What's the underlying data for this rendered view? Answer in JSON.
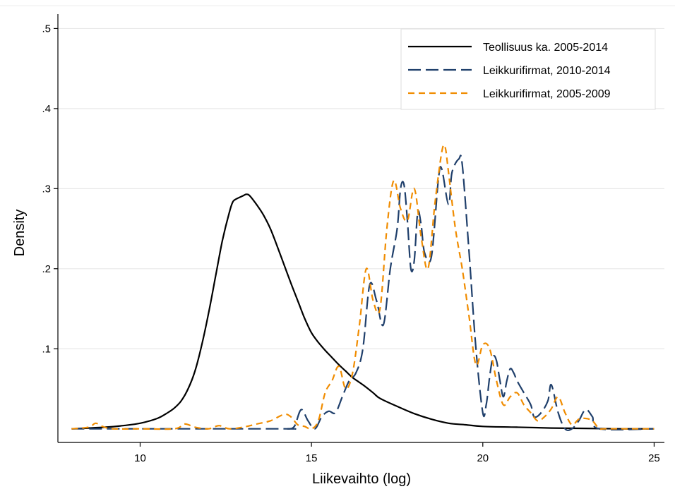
{
  "chart_data": {
    "type": "line",
    "title": "",
    "xlabel": "Liikevaihto (log)",
    "ylabel": "Density",
    "xlim": [
      7.6,
      25.3
    ],
    "ylim": [
      -0.017,
      0.518
    ],
    "xticks": [
      10,
      15,
      20,
      25
    ],
    "yticks": [
      0.1,
      0.2,
      0.3,
      0.4,
      0.5
    ],
    "ytick_labels": [
      ".1",
      ".2",
      ".3",
      ".4",
      ".5"
    ],
    "grid": true,
    "legend_position": "top-right",
    "series": [
      {
        "name": "Teollisuus ka. 2005-2014",
        "color": "#000000",
        "dash": "solid",
        "x": [
          8.0,
          9.0,
          9.5,
          10.0,
          10.5,
          10.8,
          11.0,
          11.2,
          11.4,
          11.6,
          11.8,
          12.0,
          12.2,
          12.4,
          12.6,
          12.7,
          12.8,
          13.0,
          13.1,
          13.2,
          13.4,
          13.6,
          13.8,
          14.0,
          14.2,
          14.4,
          14.6,
          14.8,
          15.0,
          15.2,
          15.4,
          15.6,
          15.8,
          16.0,
          16.2,
          16.5,
          16.8,
          17.0,
          17.5,
          18.0,
          18.5,
          19.0,
          19.5,
          20.0,
          21.0,
          22.0,
          23.0,
          24.0,
          25.0
        ],
        "y": [
          0.0,
          0.002,
          0.004,
          0.007,
          0.013,
          0.02,
          0.026,
          0.035,
          0.05,
          0.072,
          0.105,
          0.145,
          0.19,
          0.235,
          0.27,
          0.283,
          0.287,
          0.291,
          0.293,
          0.291,
          0.28,
          0.267,
          0.25,
          0.228,
          0.205,
          0.182,
          0.16,
          0.138,
          0.12,
          0.108,
          0.098,
          0.089,
          0.08,
          0.072,
          0.064,
          0.055,
          0.045,
          0.038,
          0.028,
          0.019,
          0.012,
          0.007,
          0.005,
          0.003,
          0.002,
          0.001,
          0.0005,
          0.0,
          0.0
        ]
      },
      {
        "name": "Leikkurifirmat, 2010-2014",
        "color": "#1f3f6b",
        "dash": "long",
        "x": [
          8.0,
          14.0,
          14.3,
          14.5,
          14.7,
          14.9,
          15.1,
          15.3,
          15.5,
          15.7,
          15.9,
          16.1,
          16.3,
          16.5,
          16.7,
          16.9,
          17.1,
          17.3,
          17.5,
          17.6,
          17.7,
          17.8,
          17.9,
          18.0,
          18.1,
          18.2,
          18.3,
          18.5,
          18.7,
          18.8,
          19.0,
          19.1,
          19.3,
          19.4,
          19.6,
          19.8,
          20.0,
          20.1,
          20.2,
          20.3,
          20.4,
          20.5,
          20.6,
          20.7,
          20.8,
          20.9,
          21.0,
          21.2,
          21.4,
          21.5,
          21.7,
          21.9,
          22.0,
          22.2,
          22.4,
          22.6,
          22.8,
          23.0,
          23.2,
          23.4,
          25.0
        ],
        "y": [
          0.0,
          0.0,
          0.0,
          0.003,
          0.024,
          0.01,
          0.0,
          0.015,
          0.022,
          0.02,
          0.04,
          0.06,
          0.07,
          0.1,
          0.18,
          0.16,
          0.13,
          0.2,
          0.25,
          0.3,
          0.305,
          0.26,
          0.2,
          0.21,
          0.27,
          0.255,
          0.22,
          0.215,
          0.31,
          0.325,
          0.28,
          0.32,
          0.337,
          0.33,
          0.22,
          0.1,
          0.02,
          0.03,
          0.065,
          0.09,
          0.085,
          0.06,
          0.04,
          0.06,
          0.075,
          0.07,
          0.06,
          0.045,
          0.03,
          0.015,
          0.02,
          0.035,
          0.055,
          0.02,
          0.0,
          0.0,
          0.01,
          0.024,
          0.015,
          0.0,
          0.0
        ]
      },
      {
        "name": "Leikkurifirmat, 2005-2009",
        "color": "#f08c00",
        "dash": "short",
        "x": [
          8.0,
          8.5,
          8.7,
          8.9,
          9.2,
          10.0,
          11.0,
          11.3,
          11.6,
          12.0,
          12.3,
          12.6,
          13.0,
          13.4,
          13.8,
          14.2,
          14.4,
          14.6,
          14.8,
          15.0,
          15.2,
          15.4,
          15.6,
          15.8,
          16.0,
          16.2,
          16.4,
          16.6,
          16.8,
          17.0,
          17.2,
          17.4,
          17.6,
          17.8,
          18.0,
          18.2,
          18.4,
          18.6,
          18.8,
          18.9,
          19.0,
          19.2,
          19.4,
          19.6,
          19.8,
          20.0,
          20.2,
          20.4,
          20.6,
          20.8,
          21.0,
          21.2,
          21.4,
          21.6,
          21.8,
          22.0,
          22.2,
          22.4,
          22.6,
          22.8,
          23.0,
          23.2,
          23.4,
          23.6,
          25.0
        ],
        "y": [
          0.0,
          0.002,
          0.007,
          0.003,
          0.0,
          0.0,
          0.0,
          0.006,
          0.002,
          0.0,
          0.004,
          0.0,
          0.002,
          0.006,
          0.01,
          0.018,
          0.015,
          0.005,
          0.003,
          0.0,
          0.01,
          0.045,
          0.06,
          0.078,
          0.05,
          0.07,
          0.13,
          0.2,
          0.16,
          0.15,
          0.25,
          0.31,
          0.275,
          0.26,
          0.3,
          0.24,
          0.2,
          0.28,
          0.345,
          0.352,
          0.32,
          0.25,
          0.2,
          0.14,
          0.08,
          0.105,
          0.1,
          0.06,
          0.03,
          0.04,
          0.045,
          0.03,
          0.02,
          0.01,
          0.015,
          0.025,
          0.04,
          0.02,
          0.005,
          0.012,
          0.013,
          0.01,
          0.0,
          0.0,
          0.0
        ]
      }
    ]
  }
}
